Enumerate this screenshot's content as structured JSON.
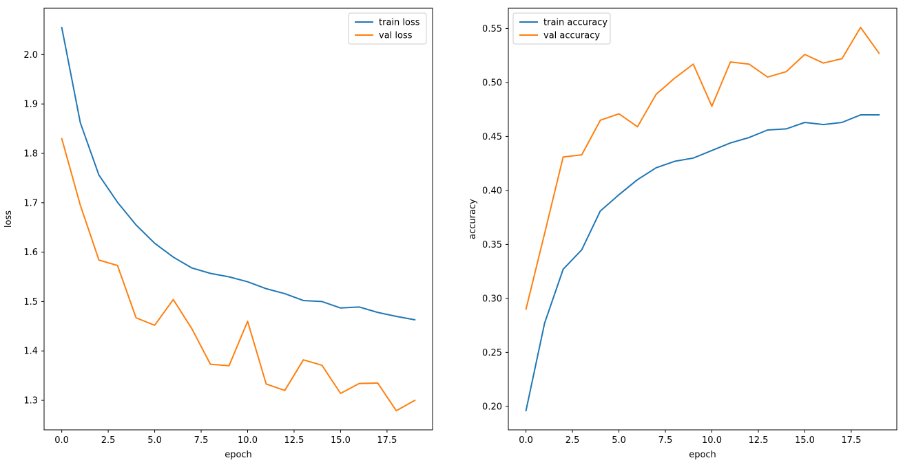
{
  "figure": {
    "background": "#ffffff",
    "spine_color": "#000000",
    "legend_border_color": "#cccccc",
    "legend_background": "#ffffff"
  },
  "chart_data": [
    {
      "type": "line",
      "name": "loss-chart",
      "xlabel": "epoch",
      "ylabel": "loss",
      "legend_position": "top-right",
      "grid": false,
      "xlim": [
        -0.95,
        19.95
      ],
      "ylim": [
        1.2402,
        2.0938
      ],
      "x": [
        0,
        1,
        2,
        3,
        4,
        5,
        6,
        7,
        8,
        9,
        10,
        11,
        12,
        13,
        14,
        15,
        16,
        17,
        18,
        19
      ],
      "xticks": [
        0,
        2.5,
        5,
        7.5,
        10,
        12.5,
        15,
        17.5
      ],
      "xtick_labels": [
        "0.0",
        "2.5",
        "5.0",
        "7.5",
        "10.0",
        "12.5",
        "15.0",
        "17.5"
      ],
      "yticks": [
        1.3,
        1.4,
        1.5,
        1.6,
        1.7,
        1.8,
        1.9,
        2.0
      ],
      "ytick_labels": [
        "1.3",
        "1.4",
        "1.5",
        "1.6",
        "1.7",
        "1.8",
        "1.9",
        "2.0"
      ],
      "series": [
        {
          "name": "train loss",
          "color": "#1f77b4",
          "values": [
            2.055,
            1.862,
            1.756,
            1.701,
            1.655,
            1.618,
            1.59,
            1.568,
            1.557,
            1.55,
            1.54,
            1.526,
            1.516,
            1.502,
            1.5,
            1.487,
            1.489,
            1.478,
            1.47,
            1.463
          ]
        },
        {
          "name": "val loss",
          "color": "#ff7f0e",
          "values": [
            1.83,
            1.695,
            1.584,
            1.573,
            1.467,
            1.452,
            1.504,
            1.445,
            1.373,
            1.37,
            1.46,
            1.333,
            1.32,
            1.382,
            1.371,
            1.314,
            1.334,
            1.335,
            1.279,
            1.3
          ]
        }
      ]
    },
    {
      "type": "line",
      "name": "accuracy-chart",
      "xlabel": "epoch",
      "ylabel": "accuracy",
      "legend_position": "top-left",
      "grid": false,
      "xlim": [
        -0.95,
        19.95
      ],
      "ylim": [
        0.17825,
        0.56875
      ],
      "x": [
        0,
        1,
        2,
        3,
        4,
        5,
        6,
        7,
        8,
        9,
        10,
        11,
        12,
        13,
        14,
        15,
        16,
        17,
        18,
        19
      ],
      "xticks": [
        0,
        2.5,
        5,
        7.5,
        10,
        12.5,
        15,
        17.5
      ],
      "xtick_labels": [
        "0.0",
        "2.5",
        "5.0",
        "7.5",
        "10.0",
        "12.5",
        "15.0",
        "17.5"
      ],
      "yticks": [
        0.2,
        0.25,
        0.3,
        0.35,
        0.4,
        0.45,
        0.5,
        0.55
      ],
      "ytick_labels": [
        "0.20",
        "0.25",
        "0.30",
        "0.35",
        "0.40",
        "0.45",
        "0.50",
        "0.55"
      ],
      "series": [
        {
          "name": "train accuracy",
          "color": "#1f77b4",
          "values": [
            0.196,
            0.277,
            0.327,
            0.345,
            0.381,
            0.396,
            0.41,
            0.421,
            0.427,
            0.43,
            0.437,
            0.444,
            0.449,
            0.456,
            0.457,
            0.463,
            0.461,
            0.463,
            0.47,
            0.47
          ]
        },
        {
          "name": "val accuracy",
          "color": "#ff7f0e",
          "values": [
            0.29,
            0.36,
            0.431,
            0.433,
            0.465,
            0.471,
            0.459,
            0.489,
            0.504,
            0.517,
            0.478,
            0.519,
            0.517,
            0.505,
            0.51,
            0.526,
            0.518,
            0.522,
            0.551,
            0.527
          ]
        }
      ]
    }
  ]
}
